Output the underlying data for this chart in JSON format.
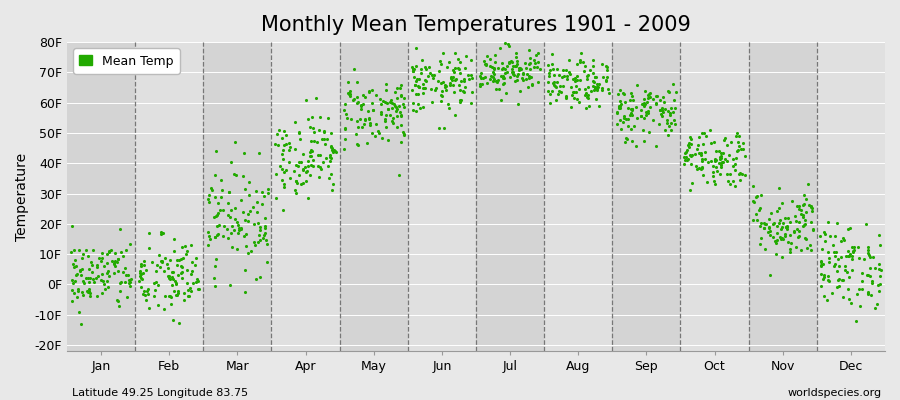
{
  "title": "Monthly Mean Temperatures 1901 - 2009",
  "ylabel": "Temperature",
  "xlabel_bottom_left": "Latitude 49.25 Longitude 83.75",
  "xlabel_bottom_right": "worldspecies.org",
  "ylim": [
    -22,
    80
  ],
  "yticks": [
    -20,
    -10,
    0,
    10,
    20,
    30,
    40,
    50,
    60,
    70,
    80
  ],
  "ytick_labels": [
    "-20F",
    "-10F",
    "0F",
    "10F",
    "20F",
    "30F",
    "40F",
    "50F",
    "60F",
    "70F",
    "80F"
  ],
  "months": [
    "Jan",
    "Feb",
    "Mar",
    "Apr",
    "May",
    "Jun",
    "Jul",
    "Aug",
    "Sep",
    "Oct",
    "Nov",
    "Dec"
  ],
  "month_means_F": [
    3,
    2,
    22,
    43,
    57,
    66,
    71,
    66,
    57,
    42,
    20,
    6
  ],
  "month_stds_F": [
    6,
    7,
    9,
    7,
    6,
    5,
    4,
    4,
    5,
    5,
    6,
    7
  ],
  "dot_color": "#22aa00",
  "dot_size": 5,
  "bg_color": "#e8e8e8",
  "band_colors": [
    "#d4d4d4",
    "#e0e0e0"
  ],
  "n_points": 109,
  "seed": 42,
  "title_fontsize": 15,
  "axis_label_fontsize": 10,
  "tick_fontsize": 9,
  "legend_label": "Mean Temp"
}
